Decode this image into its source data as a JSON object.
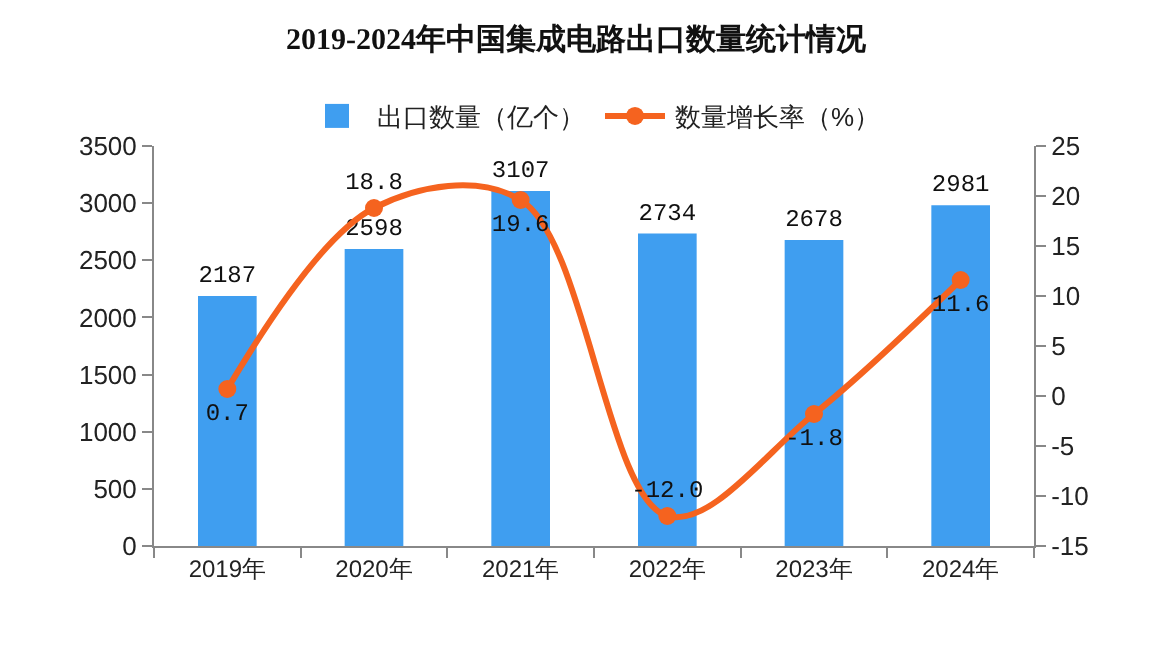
{
  "chart_data": {
    "type": "bar",
    "title": "2019-2024年中国集成电路出口数量统计情况",
    "categories": [
      "2019年",
      "2020年",
      "2021年",
      "2022年",
      "2023年",
      "2024年"
    ],
    "series": [
      {
        "name": "出口数量（亿个）",
        "color": "#3f9ef0",
        "values": [
          2187,
          2598,
          3107,
          2734,
          2678,
          2981
        ],
        "value_labels": [
          "2187",
          "2598",
          "3107",
          "2734",
          "2678",
          "2981"
        ]
      },
      {
        "name": "数量增长率（%）",
        "type": "line",
        "axis": "y2",
        "color": "#f5631f",
        "values": [
          0.7,
          18.8,
          19.6,
          -12.0,
          -1.8,
          11.6
        ],
        "value_labels": [
          "0.7",
          "18.8",
          "19.6",
          "-12.0",
          "-1.8",
          "11.6"
        ]
      }
    ],
    "ylim": [
      0,
      3500
    ],
    "yticks": [
      0,
      500,
      1000,
      1500,
      2000,
      2500,
      3000,
      3500
    ],
    "y2lim": [
      -15,
      25
    ],
    "y2ticks": [
      -15,
      -10,
      -5,
      0,
      5,
      10,
      15,
      20,
      25
    ],
    "legend": "top",
    "grid": false,
    "marker": "circle"
  }
}
